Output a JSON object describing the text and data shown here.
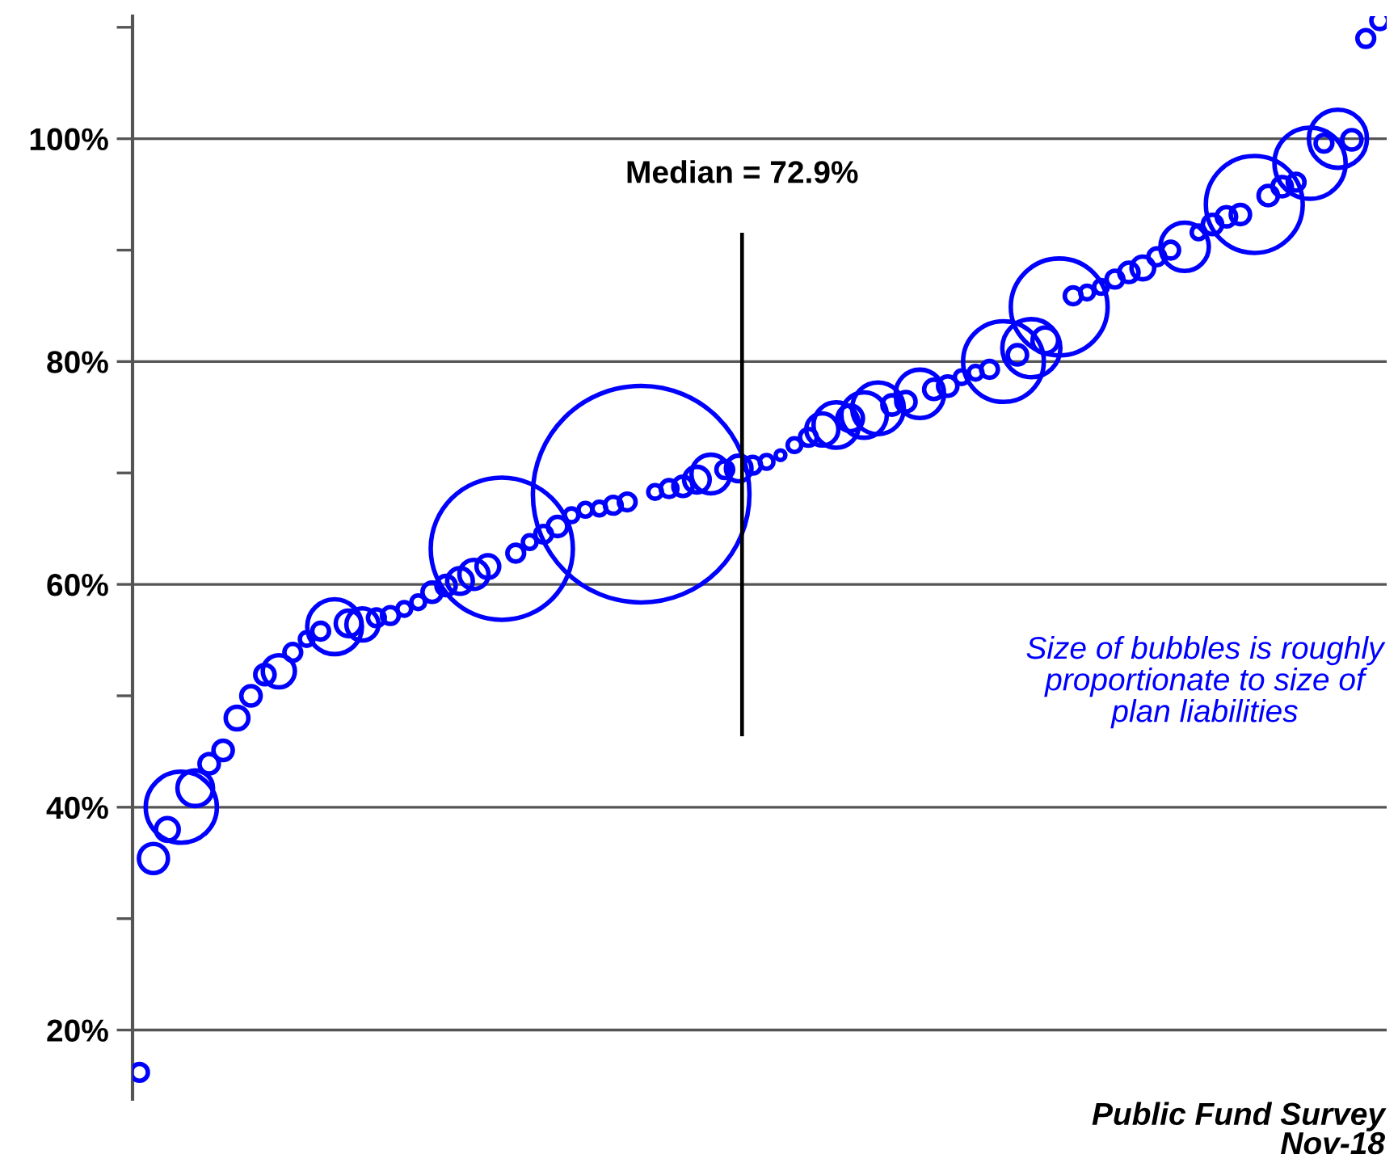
{
  "chart_data": {
    "type": "bubble",
    "categories": [
      null,
      null,
      null,
      null,
      null,
      null,
      null,
      null,
      null,
      null,
      null,
      null,
      null,
      null,
      null,
      null,
      null,
      null,
      null,
      null,
      null,
      null,
      null,
      null,
      null,
      null,
      null,
      null,
      null,
      null,
      null,
      null,
      null,
      null,
      null,
      null,
      null,
      null,
      null,
      null,
      null,
      null,
      null,
      null,
      null,
      null,
      null,
      null,
      null,
      null,
      null,
      null,
      null,
      null,
      null,
      null,
      null,
      null,
      null,
      null,
      null,
      null,
      null,
      null,
      null,
      null,
      null,
      null,
      null,
      null,
      null,
      null,
      null,
      null,
      null,
      null,
      null,
      null,
      null,
      null,
      null,
      null,
      null,
      null,
      null,
      null,
      null,
      null,
      null,
      null
    ],
    "series": [
      {
        "color": "#0000ff",
        "values": [
          16.2,
          35.4,
          38.0,
          40.0,
          41.7,
          43.9,
          45.1,
          48.0,
          50.0,
          51.9,
          52.2,
          53.9,
          55.1,
          55.8,
          56.2,
          56.5,
          56.4,
          57.0,
          57.2,
          57.8,
          58.4,
          59.3,
          59.9,
          60.3,
          60.9,
          61.6,
          63.2,
          62.8,
          63.8,
          64.5,
          65.2,
          66.2,
          66.7,
          66.8,
          67.1,
          67.4,
          68.1,
          68.3,
          68.6,
          68.8,
          69.4,
          69.9,
          70.3,
          70.4,
          70.7,
          71.0,
          71.6,
          72.5,
          73.2,
          73.9,
          74.3,
          74.9,
          75.2,
          75.8,
          76.1,
          76.4,
          77.1,
          77.5,
          77.8,
          78.6,
          79.0,
          79.3,
          80.0,
          80.6,
          81.2,
          81.9,
          84.9,
          85.9,
          86.2,
          86.7,
          87.4,
          88.0,
          88.4,
          89.4,
          90.0,
          90.3,
          91.6,
          92.3,
          93.0,
          93.2,
          94.1,
          94.9,
          95.7,
          96.1,
          97.8,
          99.6,
          100.0,
          99.9,
          109.0,
          110.6
        ],
        "sizes": [
          0.006,
          0.018,
          0.011,
          0.108,
          0.027,
          0.008,
          0.008,
          0.011,
          0.008,
          0.008,
          0.022,
          0.006,
          0.004,
          0.006,
          0.064,
          0.014,
          0.022,
          0.006,
          0.006,
          0.004,
          0.004,
          0.008,
          0.008,
          0.014,
          0.018,
          0.011,
          0.431,
          0.006,
          0.004,
          0.006,
          0.008,
          0.004,
          0.004,
          0.004,
          0.006,
          0.006,
          1,
          0.004,
          0.006,
          0.008,
          0.014,
          0.032,
          0.006,
          0.014,
          0.006,
          0.004,
          0.002,
          0.004,
          0.006,
          0.022,
          0.044,
          0.014,
          0.044,
          0.057,
          0.008,
          0.008,
          0.05,
          0.008,
          0.008,
          0.004,
          0.004,
          0.006,
          0.139,
          0.008,
          0.072,
          0.014,
          0.2,
          0.006,
          0.004,
          0.004,
          0.006,
          0.008,
          0.011,
          0.006,
          0.006,
          0.05,
          0.004,
          0.008,
          0.008,
          0.008,
          0.2,
          0.008,
          0.008,
          0.006,
          0.108,
          0.006,
          0.072,
          0.008,
          0.006,
          0.006
        ]
      }
    ],
    "ylim": [
      13.8,
      111
    ],
    "yticks": [
      {
        "value": 20,
        "label": "20%"
      },
      {
        "value": 30,
        "label": null
      },
      {
        "value": 40,
        "label": "40%"
      },
      {
        "value": 50,
        "label": null
      },
      {
        "value": 60,
        "label": "60%"
      },
      {
        "value": 70,
        "label": null
      },
      {
        "value": 80,
        "label": "80%"
      },
      {
        "value": 90,
        "label": null
      },
      {
        "value": 100,
        "label": "100%"
      },
      {
        "value": 110,
        "label": null
      }
    ],
    "grid": "y",
    "legend": false,
    "annotations": [
      "Median = 72.9%",
      "Size of bubbles is roughly\nproportionate to size of\nplan liabilities",
      "Public Fund Survey\nNov-18"
    ]
  }
}
